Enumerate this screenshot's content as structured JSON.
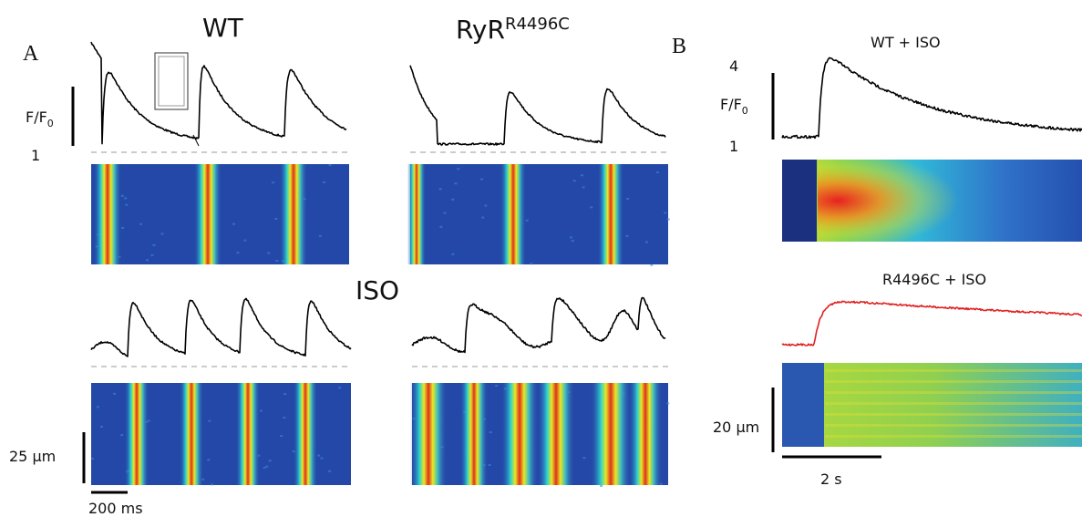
{
  "panel_a": {
    "label": "A",
    "col_wt": "WT",
    "col_mut_base": "RyR",
    "col_mut_sup": "R4496C",
    "condition": "ISO",
    "y_scale_base": "F/F",
    "y_scale_sub": "0",
    "y_scale_bottom": 1,
    "space_bar": "25 µm",
    "time_bar": "200 ms"
  },
  "panel_b": {
    "label": "B",
    "title_wt": "WT + ISO",
    "title_mut": "R4496C + ISO",
    "y_scale_top": 4,
    "y_scale_base": "F/F",
    "y_scale_sub": "0",
    "y_scale_bottom": 1,
    "space_bar": "20 µm",
    "time_bar": "2 s"
  }
}
